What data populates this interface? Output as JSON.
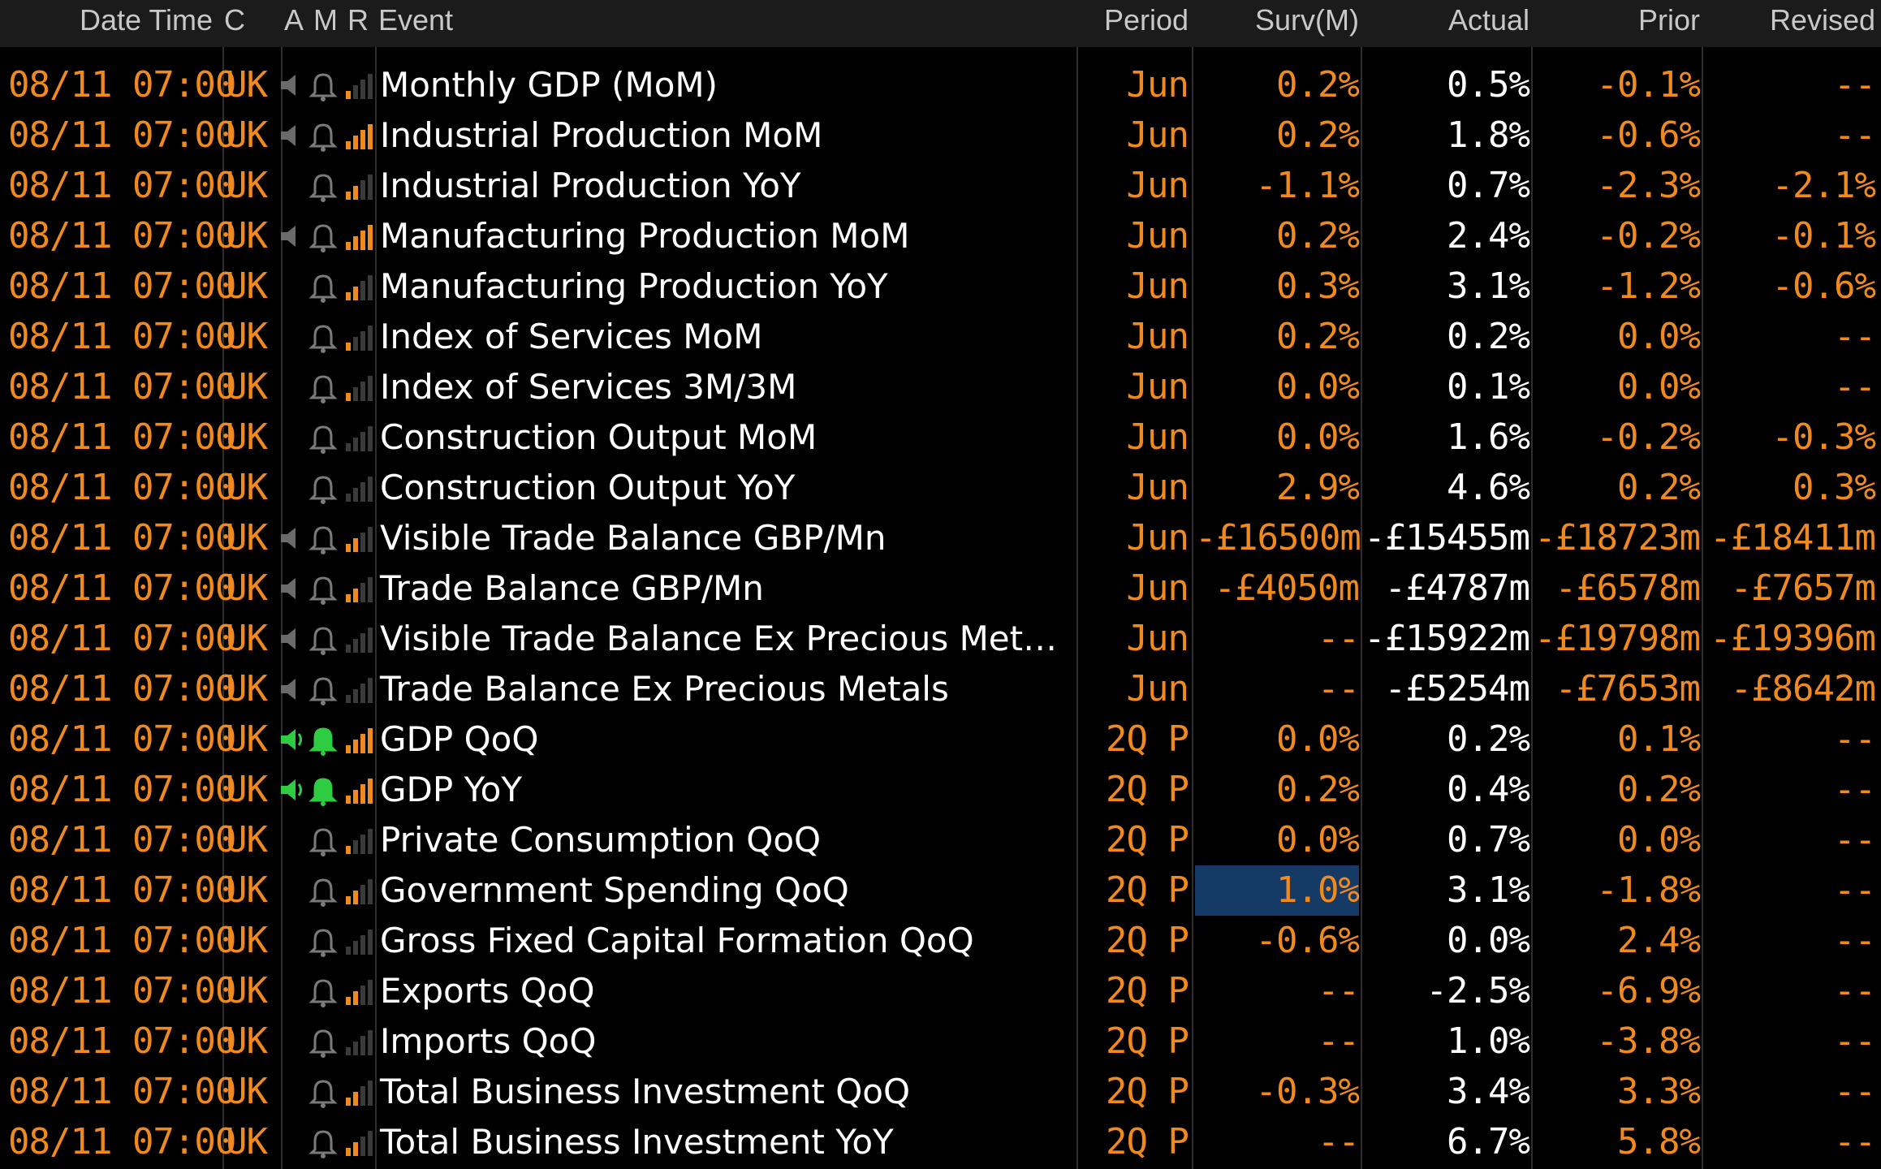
{
  "header": {
    "date_time": "Date Time",
    "country": "C",
    "alert": "A",
    "market_moving": "M",
    "relevance": "R",
    "event": "Event",
    "period": "Period",
    "survey": "Surv(M)",
    "actual": "Actual",
    "prior": "Prior",
    "revised": "Revised"
  },
  "colors": {
    "orange": "#f08a1e",
    "white": "#ffffff",
    "green_alert": "#2ecc40",
    "highlight": "#163a66",
    "header_bg": "#1b1b1b"
  },
  "rows": [
    {
      "date": "08/11 07:00",
      "country": "UK",
      "speaker": "grey",
      "bell": "grey",
      "relevance": 1,
      "event": "Monthly GDP (MoM)",
      "period": "Jun",
      "survey": "0.2%",
      "actual": "0.5%",
      "prior": "-0.1%",
      "revised": "--"
    },
    {
      "date": "08/11 07:00",
      "country": "UK",
      "speaker": "grey",
      "bell": "grey",
      "relevance": 4,
      "event": "Industrial Production MoM",
      "period": "Jun",
      "survey": "0.2%",
      "actual": "1.8%",
      "prior": "-0.6%",
      "revised": "--"
    },
    {
      "date": "08/11 07:00",
      "country": "UK",
      "speaker": "none",
      "bell": "grey",
      "relevance": 2,
      "event": "Industrial Production YoY",
      "period": "Jun",
      "survey": "-1.1%",
      "actual": "0.7%",
      "prior": "-2.3%",
      "revised": "-2.1%"
    },
    {
      "date": "08/11 07:00",
      "country": "UK",
      "speaker": "grey",
      "bell": "grey",
      "relevance": 4,
      "event": "Manufacturing Production MoM",
      "period": "Jun",
      "survey": "0.2%",
      "actual": "2.4%",
      "prior": "-0.2%",
      "revised": "-0.1%"
    },
    {
      "date": "08/11 07:00",
      "country": "UK",
      "speaker": "none",
      "bell": "grey",
      "relevance": 2,
      "event": "Manufacturing Production YoY",
      "period": "Jun",
      "survey": "0.3%",
      "actual": "3.1%",
      "prior": "-1.2%",
      "revised": "-0.6%"
    },
    {
      "date": "08/11 07:00",
      "country": "UK",
      "speaker": "none",
      "bell": "grey",
      "relevance": 1,
      "event": "Index of Services MoM",
      "period": "Jun",
      "survey": "0.2%",
      "actual": "0.2%",
      "prior": "0.0%",
      "revised": "--"
    },
    {
      "date": "08/11 07:00",
      "country": "UK",
      "speaker": "none",
      "bell": "grey",
      "relevance": 1,
      "event": "Index of Services 3M/3M",
      "period": "Jun",
      "survey": "0.0%",
      "actual": "0.1%",
      "prior": "0.0%",
      "revised": "--"
    },
    {
      "date": "08/11 07:00",
      "country": "UK",
      "speaker": "none",
      "bell": "grey",
      "relevance": 0,
      "event": "Construction Output MoM",
      "period": "Jun",
      "survey": "0.0%",
      "actual": "1.6%",
      "prior": "-0.2%",
      "revised": "-0.3%"
    },
    {
      "date": "08/11 07:00",
      "country": "UK",
      "speaker": "none",
      "bell": "grey",
      "relevance": 0,
      "event": "Construction Output YoY",
      "period": "Jun",
      "survey": "2.9%",
      "actual": "4.6%",
      "prior": "0.2%",
      "revised": "0.3%"
    },
    {
      "date": "08/11 07:00",
      "country": "UK",
      "speaker": "grey",
      "bell": "grey",
      "relevance": 2,
      "event": "Visible Trade Balance GBP/Mn",
      "period": "Jun",
      "survey": "-£16500m",
      "actual": "-£15455m",
      "prior": "-£18723m",
      "revised": "-£18411m"
    },
    {
      "date": "08/11 07:00",
      "country": "UK",
      "speaker": "grey",
      "bell": "grey",
      "relevance": 2,
      "event": "Trade Balance GBP/Mn",
      "period": "Jun",
      "survey": "-£4050m",
      "actual": "-£4787m",
      "prior": "-£6578m",
      "revised": "-£7657m"
    },
    {
      "date": "08/11 07:00",
      "country": "UK",
      "speaker": "grey",
      "bell": "grey",
      "relevance": 0,
      "event": "Visible Trade Balance Ex Precious Met…",
      "period": "Jun",
      "survey": "--",
      "actual": "-£15922m",
      "prior": "-£19798m",
      "revised": "-£19396m"
    },
    {
      "date": "08/11 07:00",
      "country": "UK",
      "speaker": "grey",
      "bell": "grey",
      "relevance": 0,
      "event": "Trade Balance Ex Precious Metals",
      "period": "Jun",
      "survey": "--",
      "actual": "-£5254m",
      "prior": "-£7653m",
      "revised": "-£8642m"
    },
    {
      "date": "08/11 07:00",
      "country": "UK",
      "speaker": "green",
      "bell": "green",
      "relevance": 4,
      "event": "GDP QoQ",
      "period": "2Q P",
      "survey": "0.0%",
      "actual": "0.2%",
      "prior": "0.1%",
      "revised": "--"
    },
    {
      "date": "08/11 07:00",
      "country": "UK",
      "speaker": "green",
      "bell": "green",
      "relevance": 4,
      "event": "GDP YoY",
      "period": "2Q P",
      "survey": "0.2%",
      "actual": "0.4%",
      "prior": "0.2%",
      "revised": "--"
    },
    {
      "date": "08/11 07:00",
      "country": "UK",
      "speaker": "none",
      "bell": "grey",
      "relevance": 1,
      "event": "Private Consumption QoQ",
      "period": "2Q P",
      "survey": "0.0%",
      "actual": "0.7%",
      "prior": "0.0%",
      "revised": "--"
    },
    {
      "date": "08/11 07:00",
      "country": "UK",
      "speaker": "none",
      "bell": "grey",
      "relevance": 2,
      "event": "Government Spending QoQ",
      "period": "2Q P",
      "survey": "1.0%",
      "actual": "3.1%",
      "prior": "-1.8%",
      "revised": "--",
      "highlight": true
    },
    {
      "date": "08/11 07:00",
      "country": "UK",
      "speaker": "none",
      "bell": "grey",
      "relevance": 0,
      "event": "Gross Fixed Capital Formation QoQ",
      "period": "2Q P",
      "survey": "-0.6%",
      "actual": "0.0%",
      "prior": "2.4%",
      "revised": "--"
    },
    {
      "date": "08/11 07:00",
      "country": "UK",
      "speaker": "none",
      "bell": "grey",
      "relevance": 2,
      "event": "Exports QoQ",
      "period": "2Q P",
      "survey": "--",
      "actual": "-2.5%",
      "prior": "-6.9%",
      "revised": "--"
    },
    {
      "date": "08/11 07:00",
      "country": "UK",
      "speaker": "none",
      "bell": "grey",
      "relevance": 0,
      "event": "Imports QoQ",
      "period": "2Q P",
      "survey": "--",
      "actual": "1.0%",
      "prior": "-3.8%",
      "revised": "--"
    },
    {
      "date": "08/11 07:00",
      "country": "UK",
      "speaker": "none",
      "bell": "grey",
      "relevance": 2,
      "event": "Total Business Investment QoQ",
      "period": "2Q P",
      "survey": "-0.3%",
      "actual": "3.4%",
      "prior": "3.3%",
      "revised": "--"
    },
    {
      "date": "08/11 07:00",
      "country": "UK",
      "speaker": "none",
      "bell": "grey",
      "relevance": 2,
      "event": "Total Business Investment YoY",
      "period": "2Q P",
      "survey": "--",
      "actual": "6.7%",
      "prior": "5.8%",
      "revised": "--"
    }
  ]
}
